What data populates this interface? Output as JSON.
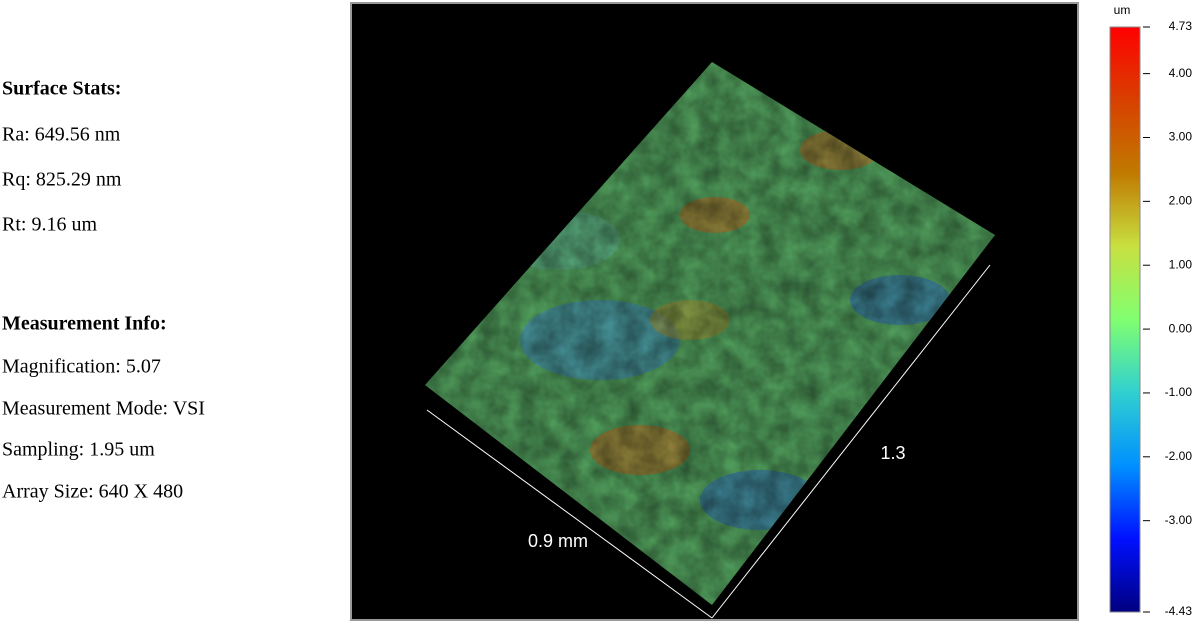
{
  "stats": {
    "title": "Surface Stats:",
    "items": [
      "Ra: 649.56 nm",
      "Rq: 825.29 nm",
      "Rt: 9.16 um"
    ]
  },
  "info": {
    "title": "Measurement Info:",
    "items": [
      "Magnification: 5.07",
      "Measurement Mode: VSI",
      "Sampling: 1.95 um",
      "Array Size: 640 X 480"
    ]
  },
  "plot": {
    "x_label": "0.9 mm",
    "y_label": "1.3"
  },
  "colorbar": {
    "unit": "um",
    "lim": [
      -4.43,
      4.73
    ],
    "ticks": [
      4.73,
      {
        "value": 4,
        "label": "4.00"
      },
      {
        "value": 3,
        "label": "3.00"
      },
      {
        "value": 2,
        "label": "2.00"
      },
      {
        "value": 1,
        "label": "1.00"
      },
      {
        "value": 0,
        "label": "0.00"
      },
      {
        "value": -1,
        "label": "-1.00"
      },
      {
        "value": -2,
        "label": "-2.00"
      },
      {
        "value": -3,
        "label": "-3.00"
      },
      -4.43
    ],
    "colors": [
      "#000080",
      "#0010ff",
      "#0090ff",
      "#30d0d0",
      "#80ff70",
      "#c8e040",
      "#c07a00",
      "#d84000",
      "#ff0000"
    ]
  }
}
